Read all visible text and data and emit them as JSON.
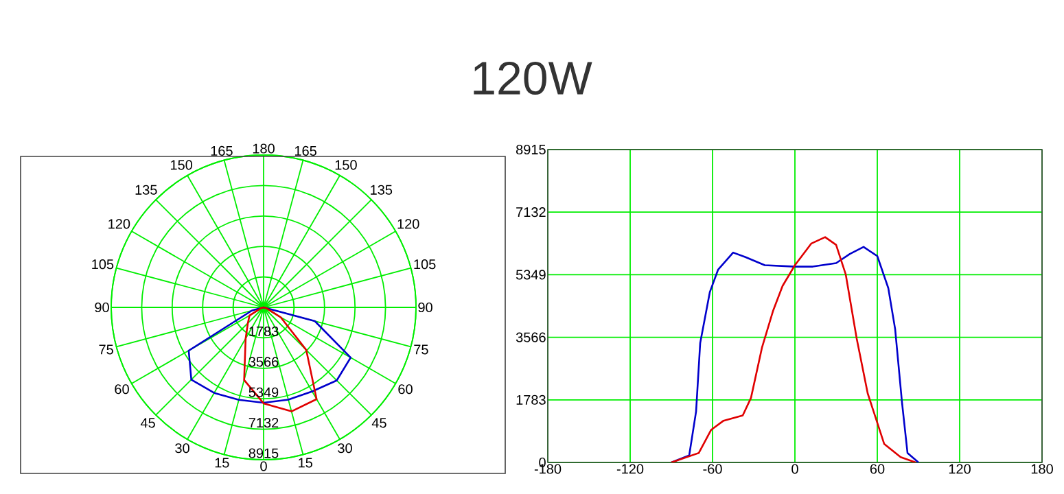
{
  "chart_data": [
    {
      "type": "radar",
      "title": "120W",
      "categories": [
        "180",
        "165",
        "150",
        "135",
        "120",
        "105",
        "90",
        "75",
        "60",
        "45",
        "30",
        "15",
        "0",
        "15",
        "30",
        "45",
        "60",
        "75",
        "90",
        "105",
        "120",
        "135",
        "150",
        "165"
      ],
      "ylim": [
        0,
        8915
      ],
      "yticks": [
        1783,
        3566,
        5349,
        7132,
        8915
      ],
      "grid": true,
      "line_style": "solid",
      "marker": "none",
      "series": [
        {
          "color": "#0000cc",
          "values": [
            0,
            0,
            0,
            0,
            0,
            0,
            0,
            3100,
            5880,
            6050,
            5680,
            5590,
            5580,
            5600,
            5780,
            5980,
            5060,
            700,
            0,
            0,
            0,
            0,
            0,
            0
          ]
        },
        {
          "color": "#e00000",
          "values": [
            0,
            0,
            0,
            0,
            0,
            0,
            0,
            150,
            1150,
            3530,
            6200,
            6300,
            5620,
            4400,
            2100,
            1300,
            950,
            150,
            0,
            0,
            0,
            0,
            0,
            0
          ]
        }
      ]
    },
    {
      "type": "line",
      "xlim": [
        -180,
        180
      ],
      "xticks": [
        -180,
        -120,
        -60,
        0,
        60,
        120,
        180
      ],
      "ylim": [
        0,
        8915
      ],
      "yticks": [
        0,
        1783,
        3566,
        5349,
        7132,
        8915
      ],
      "grid": true,
      "line_style": "solid",
      "marker": "none",
      "series": [
        {
          "color": "#0000cc",
          "x": [
            -90,
            -77,
            -72,
            -69,
            -62,
            -56,
            -45,
            -36,
            -22,
            0,
            13,
            30,
            40,
            50,
            60,
            68,
            73,
            78,
            82,
            90
          ],
          "values": [
            0,
            200,
            1450,
            3400,
            4850,
            5490,
            5980,
            5850,
            5620,
            5580,
            5580,
            5680,
            5940,
            6140,
            5880,
            4970,
            3800,
            1710,
            270,
            0
          ]
        },
        {
          "color": "#e00000",
          "x": [
            -90,
            -70,
            -61,
            -52,
            -38,
            -32,
            -24,
            -16,
            -9,
            0,
            12,
            22,
            30,
            37,
            45,
            53,
            65,
            77,
            88
          ],
          "values": [
            0,
            270,
            930,
            1190,
            1340,
            1840,
            3270,
            4310,
            5030,
            5620,
            6240,
            6420,
            6200,
            5360,
            3530,
            1970,
            530,
            150,
            0
          ]
        }
      ]
    }
  ]
}
